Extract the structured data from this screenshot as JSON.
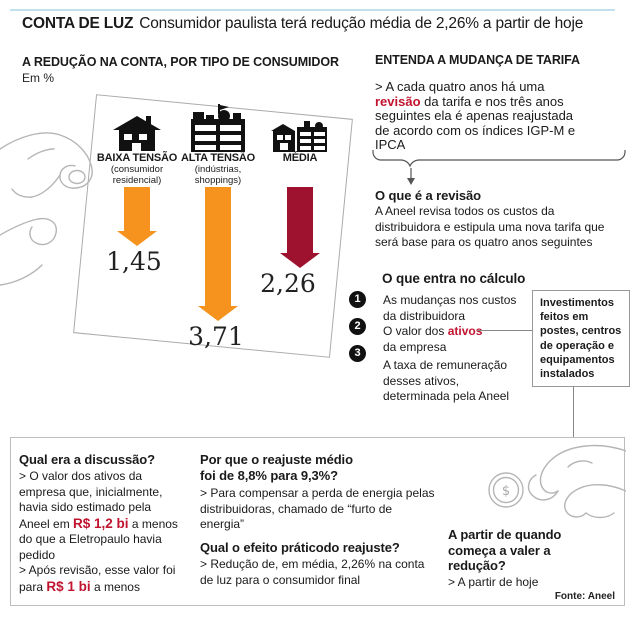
{
  "header": {
    "kicker": "CONTA DE LUZ",
    "title": "Consumidor paulista terá redução média de 2,26% a partir de hoje"
  },
  "colors": {
    "orange": "#F6921E",
    "dark_red": "#9E1230",
    "red_text": "#C0142F",
    "top_rule": "#BFE0EC"
  },
  "chart_data": {
    "type": "bar",
    "title": "A REDUÇÃO NA CONTA, POR TIPO DE CONSUMIDOR",
    "unit_label": "Em %",
    "categories": [
      "BAIXA TENSÃO",
      "ALTA TENSÃO",
      "MÉDIA"
    ],
    "category_sublabels": [
      [
        "(consumidor",
        "residencial)"
      ],
      [
        "(indústrias,",
        "shoppings)"
      ],
      []
    ],
    "values": [
      1.45,
      3.71,
      2.26
    ],
    "value_labels": [
      "1,45",
      "3,71",
      "2,26"
    ],
    "colors": [
      "#F6921E",
      "#F6921E",
      "#9E1230"
    ],
    "icons": [
      "house-icon",
      "factory-icon",
      "city-buildings-icon"
    ],
    "legend_position": "none",
    "grid": false
  },
  "explainer": {
    "title": "ENTENDA A MUDANÇA DE TARIFA",
    "intro_lines": [
      [
        {
          "t": "> A cada quatro anos há uma"
        }
      ],
      [
        {
          "t": "revisão",
          "b": true,
          "r": true
        },
        {
          "t": " da tarifa e nos três anos"
        }
      ],
      [
        {
          "t": "seguintes ela é apenas reajustada"
        }
      ],
      [
        {
          "t": "de acordo com os índices IGP-M e"
        }
      ],
      [
        {
          "t": "IPCA"
        }
      ]
    ],
    "revisao": {
      "title": "O que é a revisão",
      "body_lines": [
        "A Aneel revisa todos os custos da",
        "distribuidora e estipula uma nova tarifa que",
        "será base para os quatro anos seguintes"
      ]
    },
    "calculo": {
      "title": "O que entra no cálculo",
      "items": [
        {
          "n": "1",
          "lines": [
            [
              {
                "t": "As mudanças nos custos"
              }
            ],
            [
              {
                "t": "da distribuidora"
              }
            ]
          ]
        },
        {
          "n": "2",
          "lines": [
            [
              {
                "t": "O valor dos "
              },
              {
                "t": "ativos",
                "b": true,
                "r": true
              }
            ],
            [
              {
                "t": "da empresa"
              }
            ]
          ]
        },
        {
          "n": "3",
          "lines": [
            [
              {
                "t": "A taxa de remuneração"
              }
            ],
            [
              {
                "t": "desses ativos,"
              }
            ],
            [
              {
                "t": "determinada pela Aneel"
              }
            ]
          ]
        }
      ]
    },
    "callout_lines": [
      "Investimentos",
      "feitos em",
      "postes, centros",
      "de operação e",
      "equipamentos",
      "instalados"
    ]
  },
  "faq": {
    "q1": {
      "title": "Qual era a discussão?",
      "body_lines": [
        [
          {
            "t": "> O valor dos ativos da"
          }
        ],
        [
          {
            "t": "empresa que, inicialmente,"
          }
        ],
        [
          {
            "t": "havia sido estimado pela"
          }
        ],
        [
          {
            "t": "Aneel em "
          },
          {
            "t": "R$ 1,2 bi",
            "b": true,
            "r": true,
            "big": true
          },
          {
            "t": " a menos"
          }
        ],
        [
          {
            "t": "do que a Eletropaulo havia"
          }
        ],
        [
          {
            "t": "pedido"
          }
        ],
        [
          {
            "t": "> Após revisão, esse valor foi"
          }
        ],
        [
          {
            "t": "para "
          },
          {
            "t": "R$ 1 bi",
            "b": true,
            "r": true,
            "big": true
          },
          {
            "t": " a menos"
          }
        ]
      ]
    },
    "q2": {
      "title_lines": [
        "Por que o reajuste médio",
        "foi de 8,8% para 9,3%?"
      ],
      "body_lines": [
        "> Para compensar a perda de energia pelas",
        "distribuidoras, chamado de “furto de",
        "energia”"
      ]
    },
    "q3": {
      "title": "Qual o efeito práticodo reajuste?",
      "body_lines": [
        "> Redução de, em média, 2,26% na conta",
        "de luz para o consumidor final"
      ]
    },
    "q4": {
      "title_lines": [
        "A partir de quando",
        "começa a valer a",
        "redução?"
      ],
      "body": "> A partir de hoje"
    }
  },
  "source": "Fonte: Aneel",
  "coin_symbol": "$"
}
